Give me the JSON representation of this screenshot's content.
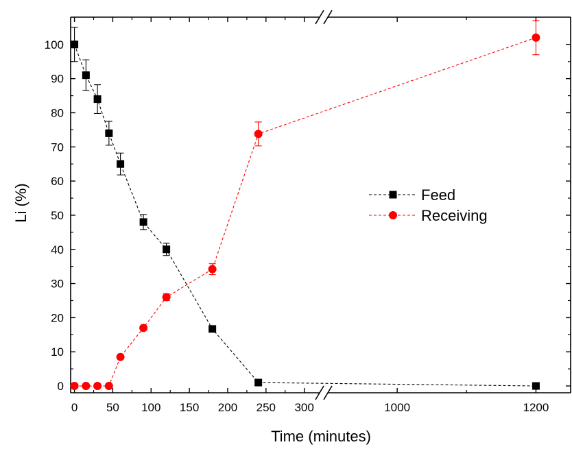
{
  "chart_data": {
    "type": "line",
    "xlabel": "Time (minutes)",
    "ylabel": "Li (%)",
    "ylim": [
      -2,
      108
    ],
    "x_axis_break": {
      "segment1": [
        -5,
        320
      ],
      "segment2": [
        900,
        1250
      ]
    },
    "xticks_segment1": [
      0,
      50,
      100,
      150,
      200,
      250,
      300
    ],
    "xticks_segment2": [
      1000,
      1200
    ],
    "yticks": [
      0,
      10,
      20,
      30,
      40,
      50,
      60,
      70,
      80,
      90,
      100
    ],
    "legend_position": "center-right",
    "grid": false,
    "series": [
      {
        "name": "Feed",
        "color": "#000000",
        "marker": "square",
        "line": "dashed",
        "x": [
          0,
          15,
          30,
          45,
          60,
          90,
          120,
          180,
          240,
          1200
        ],
        "y": [
          100,
          91,
          84,
          74,
          65,
          48,
          40,
          16.7,
          1,
          0
        ],
        "err": [
          5,
          4.5,
          4.2,
          3.5,
          3.2,
          2.2,
          1.8,
          0,
          0,
          0
        ]
      },
      {
        "name": "Receiving",
        "color": "#ff0000",
        "marker": "circle",
        "line": "dashed",
        "x": [
          0,
          15,
          30,
          45,
          60,
          90,
          120,
          180,
          240,
          1200
        ],
        "y": [
          0,
          0,
          0,
          0,
          8.5,
          17,
          26,
          34.2,
          73.8,
          102
        ],
        "err": [
          0,
          0,
          0,
          0,
          0,
          0,
          1,
          1.6,
          3.5,
          5
        ]
      }
    ]
  }
}
